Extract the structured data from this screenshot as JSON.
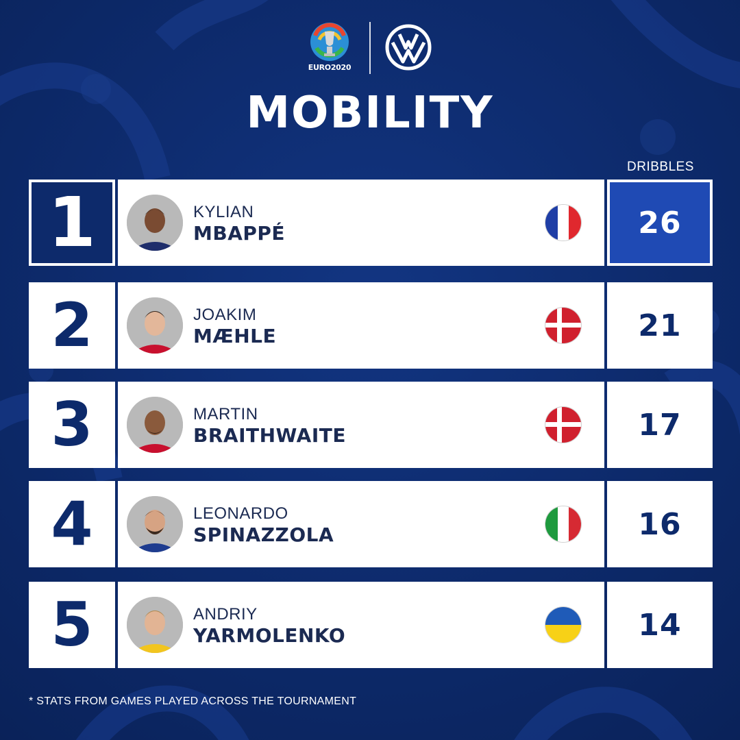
{
  "header": {
    "euro_logo_text": "EURO2020",
    "title": "MOBILITY",
    "stat_column": "DRIBBLES"
  },
  "players": [
    {
      "rank": "1",
      "first_name": "KYLIAN",
      "last_name": "MBAPPÉ",
      "country_flag": "france-flag-icon",
      "dribbles": "26"
    },
    {
      "rank": "2",
      "first_name": "JOAKIM",
      "last_name": "MÆHLE",
      "country_flag": "denmark-flag-icon",
      "dribbles": "21"
    },
    {
      "rank": "3",
      "first_name": "MARTIN",
      "last_name": "BRAITHWAITE",
      "country_flag": "denmark-flag-icon",
      "dribbles": "17"
    },
    {
      "rank": "4",
      "first_name": "LEONARDO",
      "last_name": "SPINAZZOLA",
      "country_flag": "italy-flag-icon",
      "dribbles": "16"
    },
    {
      "rank": "5",
      "first_name": "ANDRIY",
      "last_name": "YARMOLENKO",
      "country_flag": "ukraine-flag-icon",
      "dribbles": "14"
    }
  ],
  "footnote": "* STATS FROM GAMES PLAYED ACROSS THE TOURNAMENT",
  "colors": {
    "background": "#0d2a6b",
    "highlight": "#1f4ab4",
    "text_dark": "#1b2a52"
  }
}
